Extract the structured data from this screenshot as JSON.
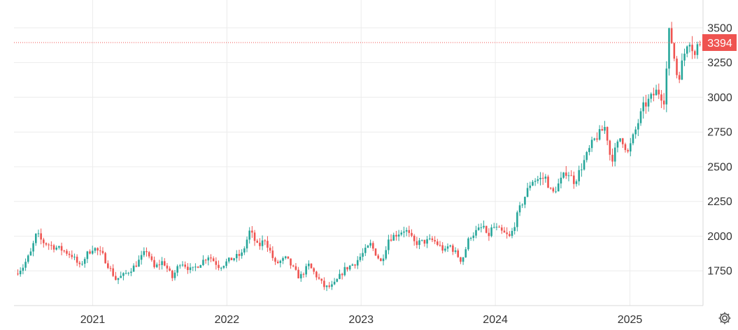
{
  "chart_data": {
    "type": "candlestick",
    "x_axis": {
      "type": "date",
      "range": [
        "2020-06-01",
        "2025-07-15"
      ],
      "ticks": [
        {
          "date": "2021-01-01",
          "label": "2021"
        },
        {
          "date": "2022-01-01",
          "label": "2022"
        },
        {
          "date": "2023-01-01",
          "label": "2023"
        },
        {
          "date": "2024-01-01",
          "label": "2024"
        },
        {
          "date": "2025-01-01",
          "label": "2025"
        }
      ]
    },
    "y_axis": {
      "position": "right",
      "range": [
        1500,
        3600
      ],
      "ticks": [
        {
          "value": 1750,
          "label": "1750"
        },
        {
          "value": 2000,
          "label": "2000"
        },
        {
          "value": 2250,
          "label": "2250"
        },
        {
          "value": 2500,
          "label": "2500"
        },
        {
          "value": 2750,
          "label": "2750"
        },
        {
          "value": 3000,
          "label": "3000"
        },
        {
          "value": 3250,
          "label": "3250"
        },
        {
          "value": 3500,
          "label": "3500"
        }
      ]
    },
    "grid": true,
    "last_price": {
      "value": 3394,
      "label": "3394",
      "line_style": "dotted"
    },
    "colors": {
      "up": "#26a69a",
      "down": "#ef5350",
      "last_price": "#ef5350",
      "grid": "#ececec",
      "axis_text": "#333333"
    },
    "price_path": [
      [
        "2020-06-08",
        1730
      ],
      [
        "2020-06-29",
        1780
      ],
      [
        "2020-07-20",
        1880
      ],
      [
        "2020-08-05",
        2020
      ],
      [
        "2020-08-20",
        1960
      ],
      [
        "2020-09-15",
        1930
      ],
      [
        "2020-10-15",
        1900
      ],
      [
        "2020-11-10",
        1860
      ],
      [
        "2020-11-30",
        1780
      ],
      [
        "2020-12-20",
        1870
      ],
      [
        "2021-01-06",
        1920
      ],
      [
        "2021-02-01",
        1860
      ],
      [
        "2021-03-08",
        1690
      ],
      [
        "2021-03-31",
        1720
      ],
      [
        "2021-05-01",
        1790
      ],
      [
        "2021-06-01",
        1900
      ],
      [
        "2021-06-20",
        1770
      ],
      [
        "2021-07-15",
        1820
      ],
      [
        "2021-08-09",
        1700
      ],
      [
        "2021-09-01",
        1820
      ],
      [
        "2021-09-30",
        1750
      ],
      [
        "2021-11-16",
        1860
      ],
      [
        "2021-12-15",
        1780
      ],
      [
        "2022-01-20",
        1840
      ],
      [
        "2022-02-15",
        1870
      ],
      [
        "2022-03-08",
        2040
      ],
      [
        "2022-03-30",
        1920
      ],
      [
        "2022-04-18",
        1980
      ],
      [
        "2022-05-16",
        1800
      ],
      [
        "2022-06-15",
        1840
      ],
      [
        "2022-07-21",
        1700
      ],
      [
        "2022-08-15",
        1790
      ],
      [
        "2022-09-28",
        1630
      ],
      [
        "2022-10-20",
        1640
      ],
      [
        "2022-11-20",
        1760
      ],
      [
        "2022-12-20",
        1810
      ],
      [
        "2023-01-30",
        1940
      ],
      [
        "2023-02-28",
        1810
      ],
      [
        "2023-03-20",
        1980
      ],
      [
        "2023-05-04",
        2050
      ],
      [
        "2023-05-30",
        1950
      ],
      [
        "2023-07-20",
        1970
      ],
      [
        "2023-08-21",
        1890
      ],
      [
        "2023-09-01",
        1940
      ],
      [
        "2023-10-05",
        1820
      ],
      [
        "2023-10-27",
        2000
      ],
      [
        "2023-12-04",
        2070
      ],
      [
        "2023-12-13",
        1980
      ],
      [
        "2023-12-28",
        2070
      ],
      [
        "2024-02-14",
        1990
      ],
      [
        "2024-03-08",
        2180
      ],
      [
        "2024-04-12",
        2400
      ],
      [
        "2024-05-20",
        2420
      ],
      [
        "2024-06-07",
        2300
      ],
      [
        "2024-07-17",
        2470
      ],
      [
        "2024-08-07",
        2390
      ],
      [
        "2024-09-26",
        2680
      ],
      [
        "2024-10-30",
        2790
      ],
      [
        "2024-11-14",
        2540
      ],
      [
        "2024-12-11",
        2720
      ],
      [
        "2024-12-30",
        2600
      ],
      [
        "2025-02-10",
        2930
      ],
      [
        "2025-03-20",
        3050
      ],
      [
        "2025-04-08",
        2980
      ],
      [
        "2025-04-22",
        3500
      ],
      [
        "2025-05-15",
        3120
      ],
      [
        "2025-06-13",
        3440
      ],
      [
        "2025-06-30",
        3300
      ],
      [
        "2025-07-10",
        3394
      ]
    ]
  },
  "settings_icon": "gear-icon"
}
